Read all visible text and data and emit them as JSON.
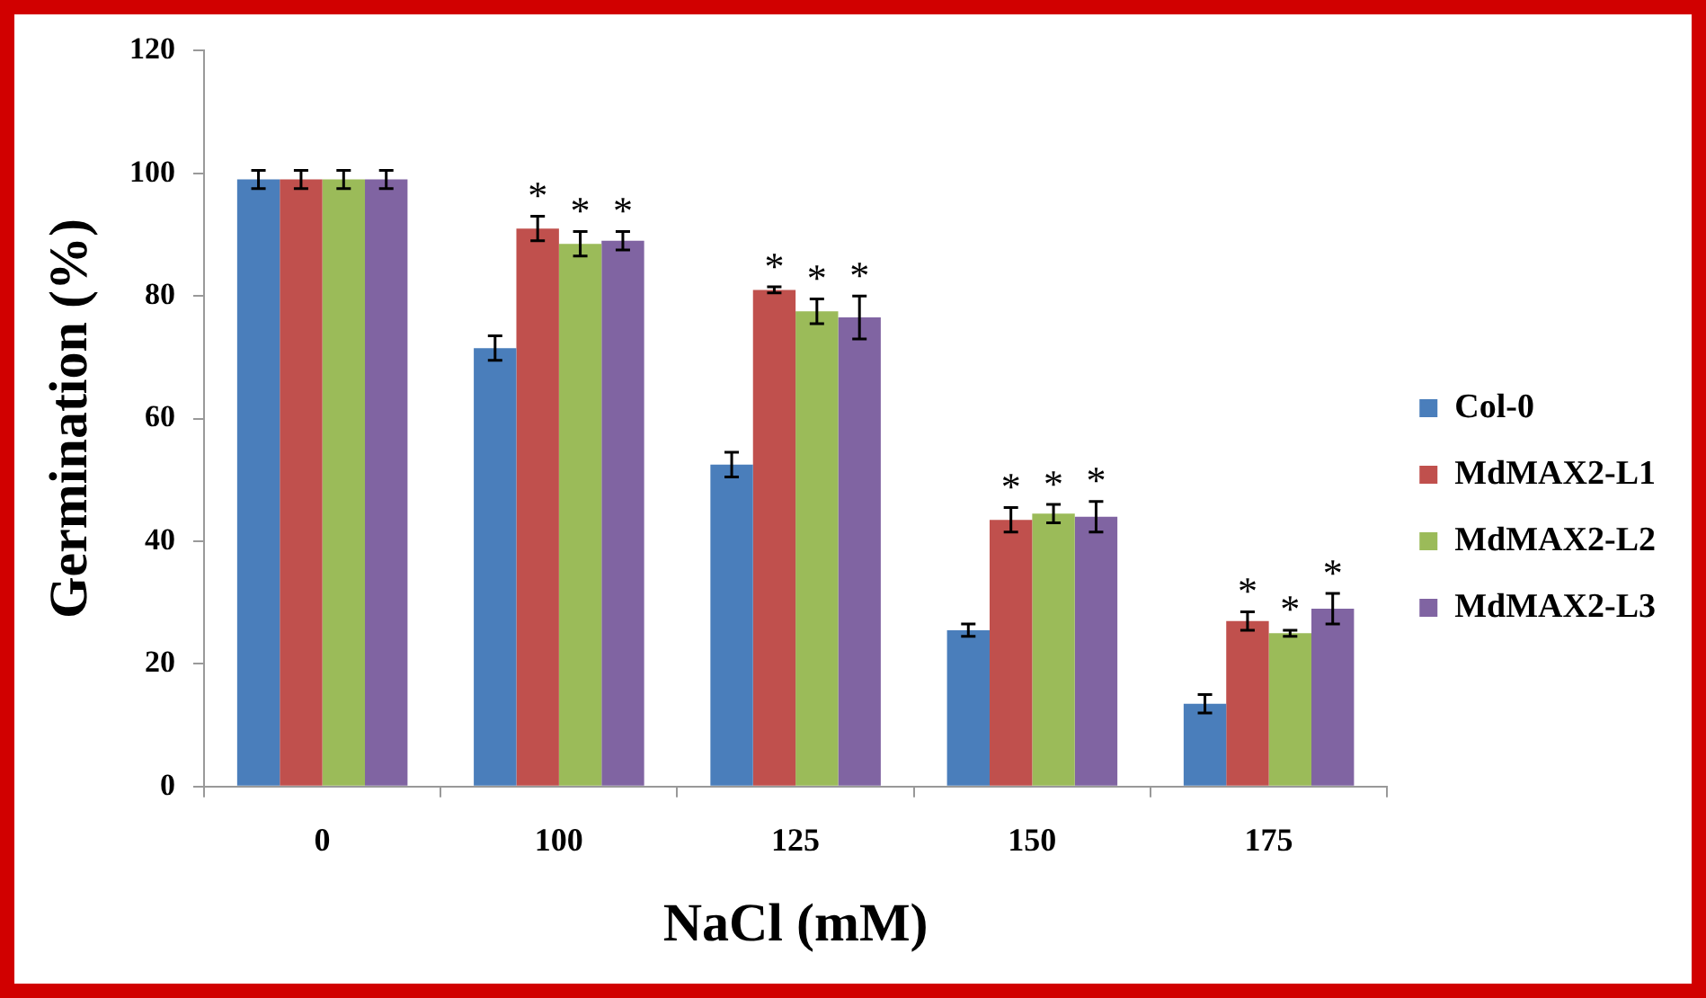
{
  "chart_data": {
    "type": "bar",
    "xlabel": "NaCl (mM)",
    "ylabel": "Germination (%)",
    "categories": [
      "0",
      "100",
      "125",
      "150",
      "175"
    ],
    "series": [
      {
        "name": "Col-0",
        "color": "#4a7ebb",
        "values": [
          99,
          71.5,
          52.5,
          25.5,
          13.5
        ],
        "errors": [
          1.5,
          2,
          2,
          1,
          1.5
        ],
        "value_labels": [
          null,
          null,
          null,
          null,
          null
        ]
      },
      {
        "name": "MdMAX2-L1",
        "color": "#c0504d",
        "values": [
          99,
          91,
          81,
          43.5,
          27
        ],
        "errors": [
          1.5,
          2,
          0.5,
          2,
          1.5
        ],
        "value_labels": [
          null,
          "*",
          "*",
          "*",
          "*"
        ]
      },
      {
        "name": "MdMAX2-L2",
        "color": "#9bbb59",
        "values": [
          99,
          88.5,
          77.5,
          44.5,
          25
        ],
        "errors": [
          1.5,
          2,
          2,
          1.5,
          0.5
        ],
        "value_labels": [
          null,
          "*",
          "*",
          "*",
          "*"
        ]
      },
      {
        "name": "MdMAX2-L3",
        "color": "#8064a2",
        "values": [
          99,
          89,
          76.5,
          44,
          29
        ],
        "errors": [
          1.5,
          1.5,
          3.5,
          2.5,
          2.5
        ],
        "value_labels": [
          null,
          "*",
          "*",
          "*",
          "*"
        ]
      }
    ],
    "ylim": [
      0,
      120
    ],
    "yticks": [
      0,
      20,
      40,
      60,
      80,
      100,
      120
    ],
    "grid": false,
    "legend": "right"
  }
}
